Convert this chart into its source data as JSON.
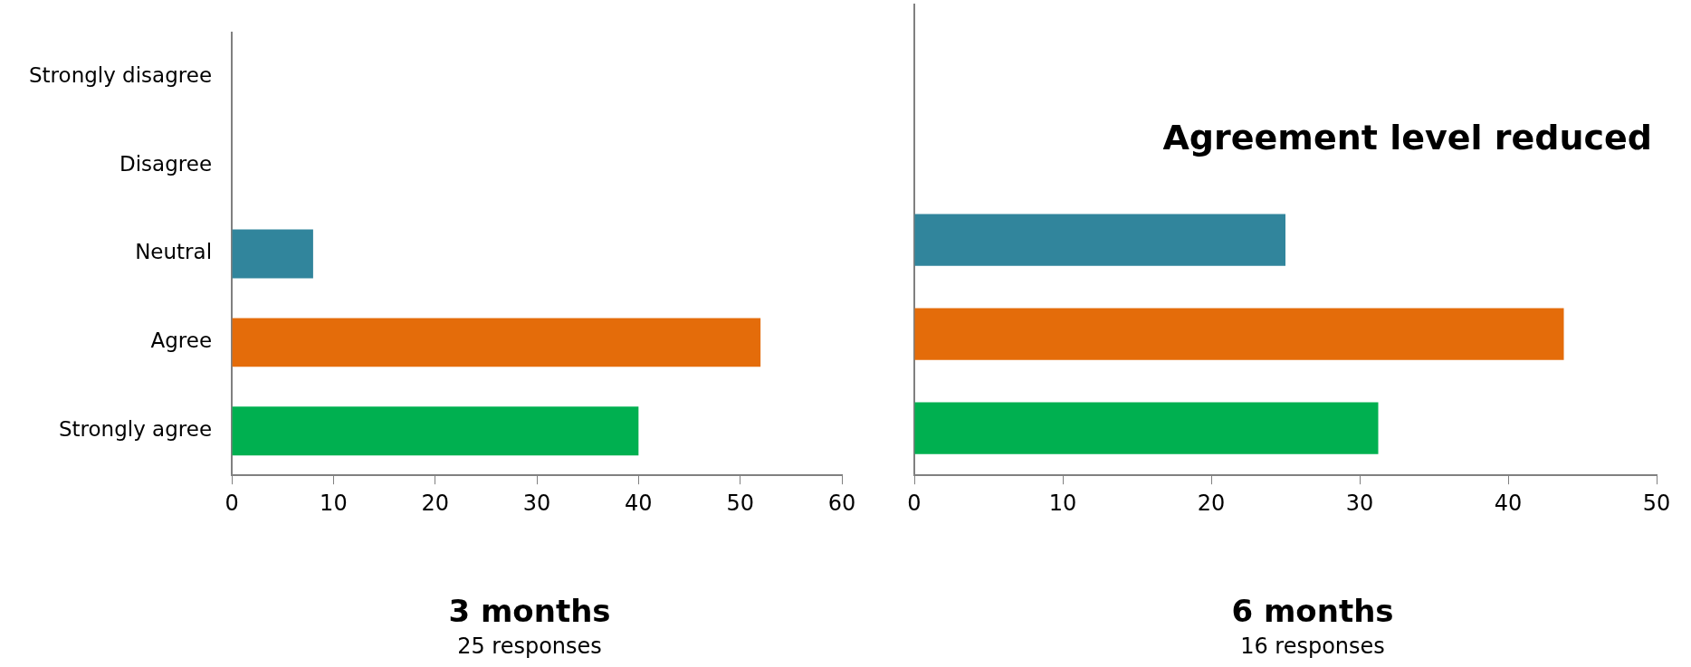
{
  "chart_data": [
    {
      "type": "bar",
      "orientation": "horizontal",
      "xlabel": "3 months",
      "annotations": [
        "25 responses"
      ],
      "categories": [
        "Strongly disagree",
        "Disagree",
        "Neutral",
        "Agree",
        "Strongly agree"
      ],
      "values": [
        0,
        0,
        8,
        52,
        40
      ],
      "colors": [
        "#31859c",
        "#31859c",
        "#31859c",
        "#e46c0a",
        "#00b050"
      ],
      "xlim": [
        0,
        60
      ],
      "xticks": [
        0,
        10,
        20,
        30,
        40,
        50,
        60
      ],
      "grid": false,
      "legend": false
    },
    {
      "type": "bar",
      "orientation": "horizontal",
      "xlabel": "6 months",
      "annotations": [
        "Agreement level reduced",
        "16 responses"
      ],
      "categories": [
        null,
        null,
        null,
        null,
        null
      ],
      "values": [
        0,
        0,
        25,
        43.75,
        31.25
      ],
      "colors": [
        "#31859c",
        "#31859c",
        "#31859c",
        "#e46c0a",
        "#00b050"
      ],
      "xlim": [
        0,
        50
      ],
      "xticks": [
        0,
        10,
        20,
        30,
        40,
        50
      ],
      "grid": false,
      "legend": false,
      "tick_labels": "x"
    }
  ]
}
